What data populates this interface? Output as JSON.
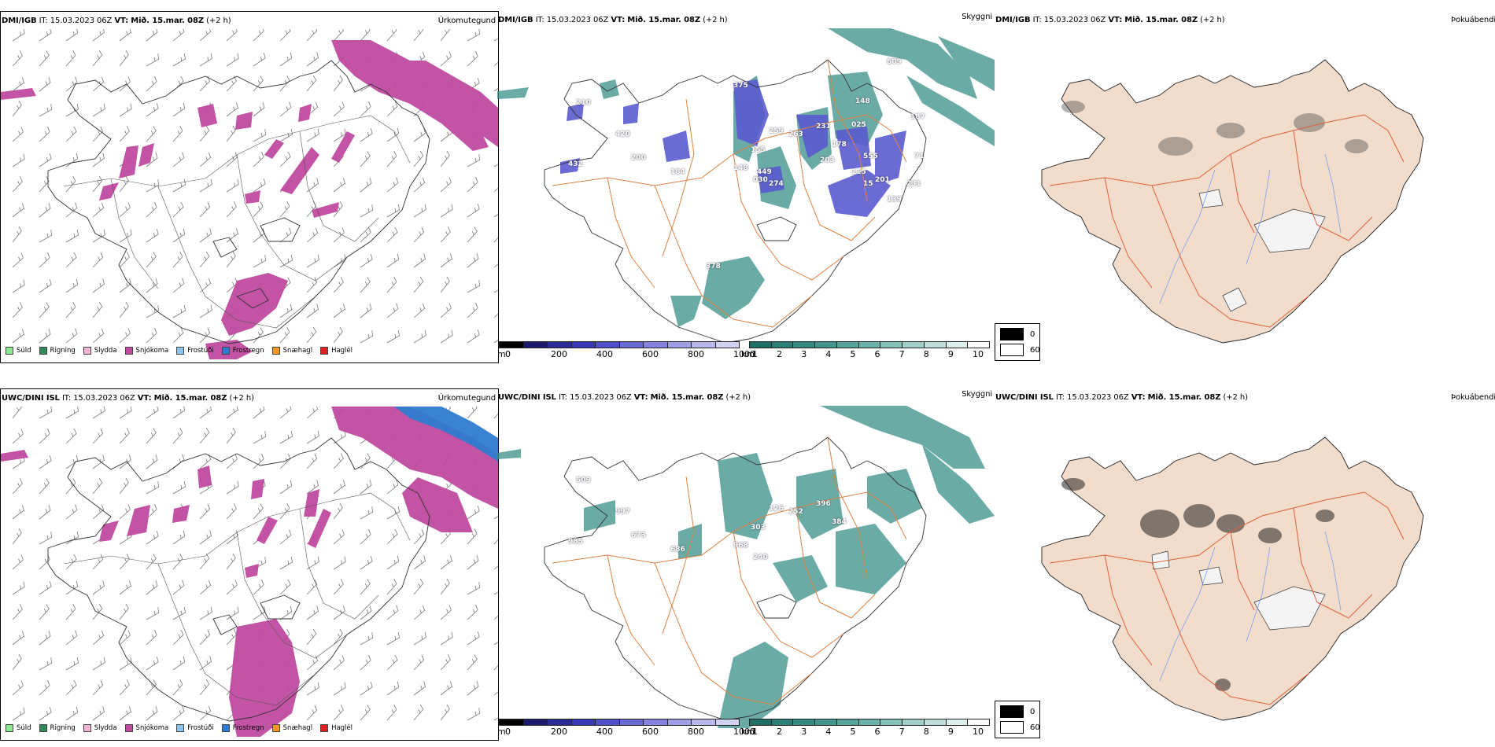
{
  "panels": [
    {
      "model": "DMI/IGB",
      "it_label": "IT:",
      "it_value": "15.03.2023 06Z",
      "vt_label": "VT:",
      "vt_value": "Mið. 15.mar. 08Z",
      "lead": "(+2 h)",
      "product": "Úrkomutegund"
    },
    {
      "model": "DMI/IGB",
      "it_label": "IT:",
      "it_value": "15.03.2023 06Z",
      "vt_label": "VT:",
      "vt_value": "Mið. 15.mar. 08Z",
      "lead": "(+2 h)",
      "product": "Skyggni"
    },
    {
      "model": "DMI/IGB",
      "it_label": "IT:",
      "it_value": "15.03.2023 06Z",
      "vt_label": "VT:",
      "vt_value": "Mið. 15.mar. 08Z",
      "lead": "(+2 h)",
      "product": "Þokuábendi"
    },
    {
      "model": "UWC/DINI ISL",
      "it_label": "IT:",
      "it_value": "15.03.2023 06Z",
      "vt_label": "VT:",
      "vt_value": "Mið. 15.mar. 08Z",
      "lead": "(+2 h)",
      "product": "Úrkomutegund"
    },
    {
      "model": "UWC/DINI ISL",
      "it_label": "IT:",
      "it_value": "15.03.2023 06Z",
      "vt_label": "VT:",
      "vt_value": "Mið. 15.mar. 08Z",
      "lead": "(+2 h)",
      "product": "Skyggni"
    },
    {
      "model": "UWC/DINI ISL",
      "it_label": "IT:",
      "it_value": "15.03.2023 06Z",
      "vt_label": "VT:",
      "vt_value": "Mið. 15.mar. 08Z",
      "lead": "(+2 h)",
      "product": "Þokuábendi"
    }
  ],
  "precip_legend": [
    {
      "label": "Súld",
      "color": "#8fe88f"
    },
    {
      "label": "Rigning",
      "color": "#2e8b57"
    },
    {
      "label": "Slydda",
      "color": "#f4b6d8"
    },
    {
      "label": "Snjókoma",
      "color": "#c04aa0"
    },
    {
      "label": "Frostúði",
      "color": "#8ec5f0"
    },
    {
      "label": "Frostregn",
      "color": "#2f7bd0"
    },
    {
      "label": "Snæhagl",
      "color": "#f09a20"
    },
    {
      "label": "Haglél",
      "color": "#e02020"
    }
  ],
  "visibility_scale_m": {
    "unit": "m",
    "ticks": [
      "0",
      "200",
      "400",
      "600",
      "800",
      "1000"
    ],
    "colors": [
      "#000000",
      "#1a1a6e",
      "#2b2b9a",
      "#3a3ab8",
      "#5050c8",
      "#6a6ad2",
      "#8484dc",
      "#9e9ee4",
      "#b8b8ec",
      "#d2d2f4"
    ]
  },
  "visibility_scale_km": {
    "unit": "km",
    "ticks": [
      "1",
      "2",
      "3",
      "4",
      "5",
      "6",
      "7",
      "8",
      "9",
      "10"
    ],
    "colors": [
      "#1f6f66",
      "#2a7f76",
      "#338a82",
      "#3f968e",
      "#55a39b",
      "#6cb1aa",
      "#85c0b9",
      "#a0cfca",
      "#bddfdb",
      "#dcefed",
      "#ffffff"
    ]
  },
  "fog_legend": [
    {
      "value": "0",
      "color": "#000000"
    },
    {
      "value": "60",
      "color": "#ffffff"
    }
  ],
  "vis_labels_top": [
    "210",
    "420",
    "432",
    "200",
    "184",
    "148",
    "030",
    "155",
    "259",
    "263",
    "231",
    "178",
    "203",
    "274",
    "115",
    "555",
    "201",
    "139",
    "609",
    "375",
    "378",
    "025",
    "187",
    "231",
    "15",
    "449",
    "148",
    "71"
  ],
  "vis_labels_bottom": [
    "509",
    "997",
    "985",
    "673",
    "686",
    "968",
    "240",
    "303",
    "126",
    "252",
    "396",
    "384"
  ],
  "colors": {
    "snow": "#c04aa0",
    "freezing_rain": "#2f7bd0",
    "vis_teal": "#3a8f88",
    "vis_blue": "#5b5bd0",
    "road": "#e08040",
    "fog_land": "#f2dccb",
    "fog_road": "#e0603a",
    "river": "#7f9fef"
  }
}
